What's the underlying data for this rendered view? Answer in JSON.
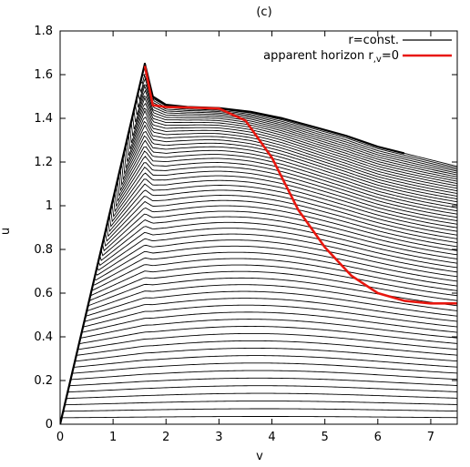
{
  "chart_data": {
    "type": "line",
    "title": "(c)",
    "xlabel": "v",
    "ylabel": "u",
    "xlim": [
      0,
      7.5
    ],
    "ylim": [
      0,
      1.8
    ],
    "xticks": [
      "0",
      "1",
      "2",
      "3",
      "4",
      "5",
      "6",
      "7"
    ],
    "yticks": [
      "0",
      "0.2",
      "0.4",
      "0.6",
      "0.8",
      "1",
      "1.2",
      "1.4",
      "1.6",
      "1.8"
    ],
    "legend": {
      "position": "top-right",
      "entries": [
        {
          "label": "r=const.",
          "color": "#000000"
        },
        {
          "label_main": "apparent horizon r",
          "label_sub": ",v",
          "label_tail": "=0",
          "color": "#e8170f"
        }
      ]
    },
    "series": [
      {
        "role": "outer-envelope",
        "color": "#000000",
        "x": [
          0,
          1.6,
          1.75,
          2.0,
          2.4,
          3.0,
          3.6,
          4.2,
          4.8,
          5.4,
          6.0,
          6.5
        ],
        "y": [
          0,
          1.65,
          1.5,
          1.462,
          1.452,
          1.447,
          1.43,
          1.4,
          1.36,
          1.32,
          1.27,
          1.24
        ]
      },
      {
        "name": "apparent horizon r,v=0",
        "color": "#e8170f",
        "x": [
          1.6,
          1.75,
          2.0,
          2.4,
          3.0,
          3.5,
          4.0,
          4.5,
          5.0,
          5.5,
          6.0,
          6.5,
          7.0,
          7.5
        ],
        "y": [
          1.64,
          1.46,
          1.452,
          1.45,
          1.445,
          1.39,
          1.22,
          0.98,
          0.81,
          0.68,
          0.6,
          0.565,
          0.553,
          0.553
        ]
      }
    ],
    "curve_family": {
      "description": "r=const.",
      "count": 62,
      "color": "#000000"
    },
    "colors": {
      "curve": "#000000",
      "horizon": "#e8170f",
      "background": "#ffffff"
    }
  }
}
